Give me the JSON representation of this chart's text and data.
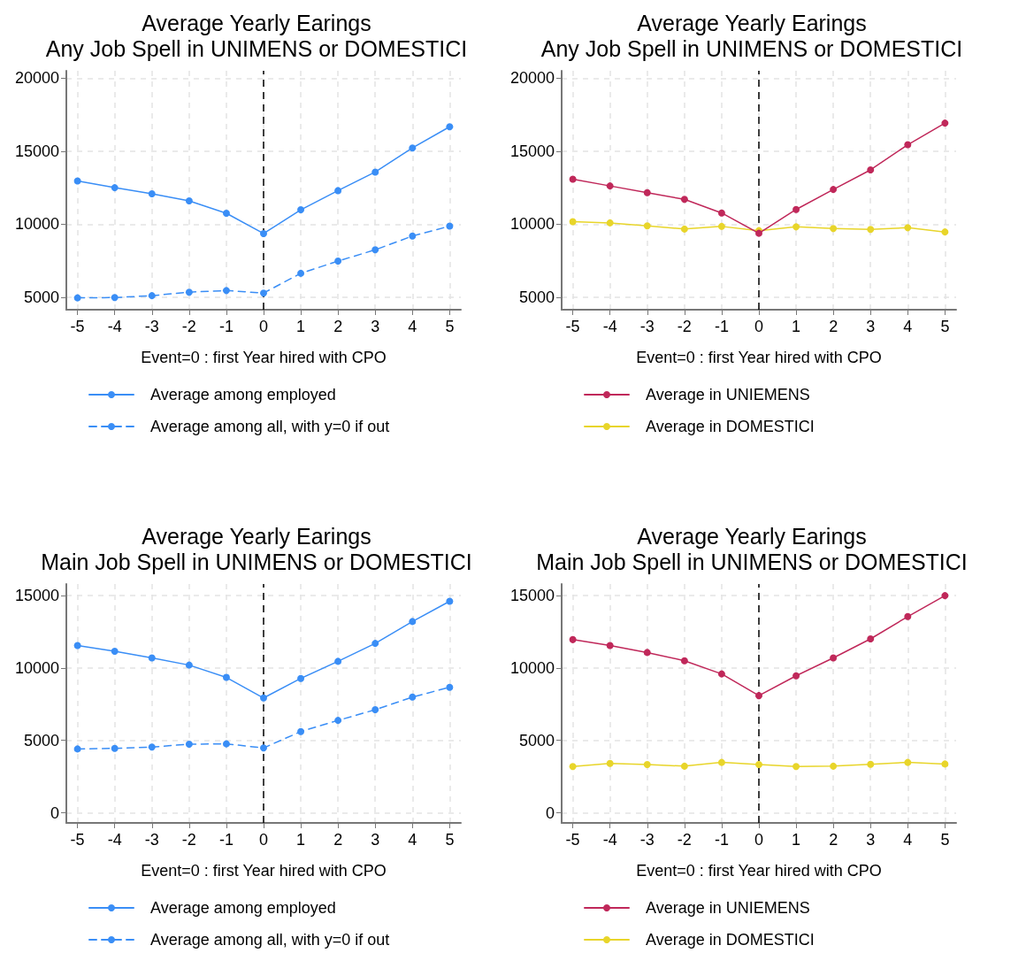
{
  "chart_data": [
    {
      "type": "line",
      "title": "Average Yearly Earings",
      "subtitle": "Any Job Spell in UNIMENS or DOMESTICI",
      "xlabel": "Event=0 : first Year hired with CPO",
      "x": [
        -5,
        -4,
        -3,
        -2,
        -1,
        0,
        1,
        2,
        3,
        4,
        5
      ],
      "xlim": [
        -5.3,
        5.3
      ],
      "xticks": [
        -5,
        -4,
        -3,
        -2,
        -1,
        0,
        1,
        2,
        3,
        4,
        5
      ],
      "ylim": [
        4150,
        20500
      ],
      "yticks": [
        5000,
        10000,
        15000,
        20000
      ],
      "grid": true,
      "legend": "bottom",
      "marker": "circle",
      "ref_lines": [
        {
          "axis": "x",
          "value": 0,
          "color": "#000000",
          "line_style": "dashed"
        }
      ],
      "series": [
        {
          "name": "Average among employed",
          "color": "#3a8ef6",
          "line_style": "solid",
          "values": [
            12960,
            12500,
            12080,
            11600,
            10750,
            9360,
            10990,
            12300,
            13570,
            15220,
            16670
          ]
        },
        {
          "name": "Average among all, with y=0 if out",
          "color": "#3a8ef6",
          "line_style": "dashed",
          "values": [
            4960,
            4980,
            5110,
            5350,
            5460,
            5290,
            6640,
            7480,
            8250,
            9190,
            9870
          ]
        }
      ]
    },
    {
      "type": "line",
      "title": "Average Yearly Earings",
      "subtitle": "Any Job Spell in UNIMENS or DOMESTICI",
      "xlabel": "Event=0 : first Year hired with CPO",
      "x": [
        -5,
        -4,
        -3,
        -2,
        -1,
        0,
        1,
        2,
        3,
        4,
        5
      ],
      "xlim": [
        -5.3,
        5.3
      ],
      "xticks": [
        -5,
        -4,
        -3,
        -2,
        -1,
        0,
        1,
        2,
        3,
        4,
        5
      ],
      "ylim": [
        4150,
        20500
      ],
      "yticks": [
        5000,
        10000,
        15000,
        20000
      ],
      "grid": true,
      "legend": "bottom",
      "marker": "circle",
      "ref_lines": [
        {
          "axis": "x",
          "value": 0,
          "color": "#000000",
          "line_style": "dashed"
        }
      ],
      "series": [
        {
          "name": "Average in UNIEMENS",
          "color": "#c0285a",
          "line_style": "solid",
          "values": [
            13080,
            12620,
            12160,
            11700,
            10770,
            9380,
            11010,
            12380,
            13720,
            15440,
            16920
          ]
        },
        {
          "name": "Average in DOMESTICI",
          "color": "#e8d52a",
          "line_style": "solid",
          "values": [
            10180,
            10090,
            9890,
            9670,
            9850,
            9560,
            9820,
            9710,
            9650,
            9760,
            9470
          ]
        }
      ]
    },
    {
      "type": "line",
      "title": "Average Yearly Earings",
      "subtitle": "Main Job Spell in UNIMENS or DOMESTICI",
      "xlabel": "Event=0 : first Year hired with CPO",
      "x": [
        -5,
        -4,
        -3,
        -2,
        -1,
        0,
        1,
        2,
        3,
        4,
        5
      ],
      "xlim": [
        -5.3,
        5.3
      ],
      "xticks": [
        -5,
        -4,
        -3,
        -2,
        -1,
        0,
        1,
        2,
        3,
        4,
        5
      ],
      "ylim": [
        -700,
        15800
      ],
      "yticks": [
        0,
        5000,
        10000,
        15000
      ],
      "grid": true,
      "legend": "bottom",
      "marker": "circle",
      "ref_lines": [
        {
          "axis": "x",
          "value": 0,
          "color": "#000000",
          "line_style": "dashed"
        }
      ],
      "series": [
        {
          "name": "Average among employed",
          "color": "#3a8ef6",
          "line_style": "solid",
          "values": [
            11550,
            11160,
            10700,
            10200,
            9350,
            7930,
            9280,
            10460,
            11700,
            13210,
            14610
          ]
        },
        {
          "name": "Average among all, with y=0 if out",
          "color": "#3a8ef6",
          "line_style": "dashed",
          "values": [
            4410,
            4450,
            4540,
            4740,
            4760,
            4480,
            5610,
            6380,
            7120,
            7990,
            8670
          ]
        }
      ]
    },
    {
      "type": "line",
      "title": "Average Yearly Earings",
      "subtitle": "Main Job Spell in UNIMENS or DOMESTICI",
      "xlabel": "Event=0 : first Year hired with CPO",
      "x": [
        -5,
        -4,
        -3,
        -2,
        -1,
        0,
        1,
        2,
        3,
        4,
        5
      ],
      "xlim": [
        -5.3,
        5.3
      ],
      "xticks": [
        -5,
        -4,
        -3,
        -2,
        -1,
        0,
        1,
        2,
        3,
        4,
        5
      ],
      "ylim": [
        -700,
        15800
      ],
      "yticks": [
        0,
        5000,
        10000,
        15000
      ],
      "grid": true,
      "legend": "bottom",
      "marker": "circle",
      "ref_lines": [
        {
          "axis": "x",
          "value": 0,
          "color": "#000000",
          "line_style": "dashed"
        }
      ],
      "series": [
        {
          "name": "Average in UNIEMENS",
          "color": "#c0285a",
          "line_style": "solid",
          "values": [
            11960,
            11550,
            11070,
            10500,
            9590,
            8090,
            9460,
            10700,
            12010,
            13550,
            15000
          ]
        },
        {
          "name": "Average in DOMESTICI",
          "color": "#e8d52a",
          "line_style": "solid",
          "values": [
            3200,
            3410,
            3330,
            3220,
            3480,
            3330,
            3200,
            3220,
            3350,
            3480,
            3370
          ]
        }
      ]
    }
  ]
}
